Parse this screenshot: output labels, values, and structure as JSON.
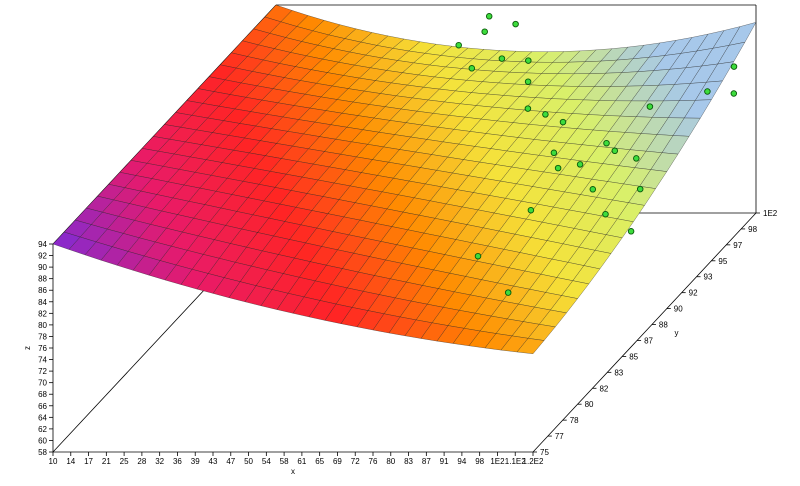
{
  "chart_data": {
    "type": "surface3d",
    "x_axis": {
      "label": "x",
      "range": [
        10,
        120
      ],
      "ticks": [
        "10",
        "14",
        "17",
        "21",
        "25",
        "28",
        "32",
        "36",
        "39",
        "43",
        "47",
        "50",
        "54",
        "58",
        "61",
        "65",
        "69",
        "72",
        "76",
        "80",
        "83",
        "87",
        "91",
        "94",
        "98",
        "1E2",
        "1.1E2",
        "1.2E2"
      ]
    },
    "y_axis": {
      "label": "y",
      "range": [
        75,
        100
      ],
      "ticks": [
        "75",
        "77",
        "78",
        "80",
        "82",
        "83",
        "85",
        "87",
        "88",
        "90",
        "92",
        "93",
        "95",
        "97",
        "98",
        "1E2"
      ]
    },
    "z_axis": {
      "label": "z",
      "range": [
        58,
        94
      ],
      "ticks": [
        "58",
        "60",
        "62",
        "64",
        "66",
        "68",
        "70",
        "72",
        "74",
        "76",
        "78",
        "80",
        "82",
        "84",
        "86",
        "88",
        "90",
        "92",
        "94"
      ]
    },
    "surface": {
      "x": [
        10,
        65,
        120
      ],
      "y": [
        75,
        87.5,
        100
      ],
      "z": [
        [
          94,
          82,
          75
        ],
        [
          94,
          87,
          80
        ],
        [
          94,
          86,
          91
        ]
      ],
      "colors": [
        "#7f2bd6",
        "#e81a6a",
        "#ff2424",
        "#ff8a00",
        "#f5e23a",
        "#d9f06a",
        "#a7c8ea"
      ]
    },
    "points": [
      {
        "x": 58,
        "y": 97,
        "z": 92
      },
      {
        "x": 61,
        "y": 97,
        "z": 88
      },
      {
        "x": 65,
        "y": 97,
        "z": 97
      },
      {
        "x": 66,
        "y": 96,
        "z": 96
      },
      {
        "x": 69,
        "y": 98,
        "z": 94
      },
      {
        "x": 72,
        "y": 95,
        "z": 93
      },
      {
        "x": 76,
        "y": 96,
        "z": 91
      },
      {
        "x": 78,
        "y": 95,
        "z": 89
      },
      {
        "x": 80,
        "y": 94,
        "z": 86
      },
      {
        "x": 84,
        "y": 94,
        "z": 85
      },
      {
        "x": 86,
        "y": 95,
        "z": 82
      },
      {
        "x": 88,
        "y": 93,
        "z": 80
      },
      {
        "x": 91,
        "y": 92,
        "z": 79
      },
      {
        "x": 94,
        "y": 93,
        "z": 78
      },
      {
        "x": 98,
        "y": 94,
        "z": 80
      },
      {
        "x": 101,
        "y": 91,
        "z": 77
      },
      {
        "x": 104,
        "y": 92,
        "z": 82
      },
      {
        "x": 108,
        "y": 89,
        "z": 76
      },
      {
        "x": 110,
        "y": 93,
        "z": 88
      },
      {
        "x": 113,
        "y": 90,
        "z": 84
      },
      {
        "x": 118,
        "y": 88,
        "z": 82
      },
      {
        "x": 120,
        "y": 86,
        "z": 78
      },
      {
        "x": 100,
        "y": 82,
        "z": 74
      },
      {
        "x": 89,
        "y": 84,
        "z": 77
      },
      {
        "x": 95,
        "y": 87,
        "z": 80
      },
      {
        "x": 115,
        "y": 97,
        "z": 84
      },
      {
        "x": 117,
        "y": 99,
        "z": 85
      },
      {
        "x": 119,
        "y": 98,
        "z": 82
      }
    ]
  }
}
